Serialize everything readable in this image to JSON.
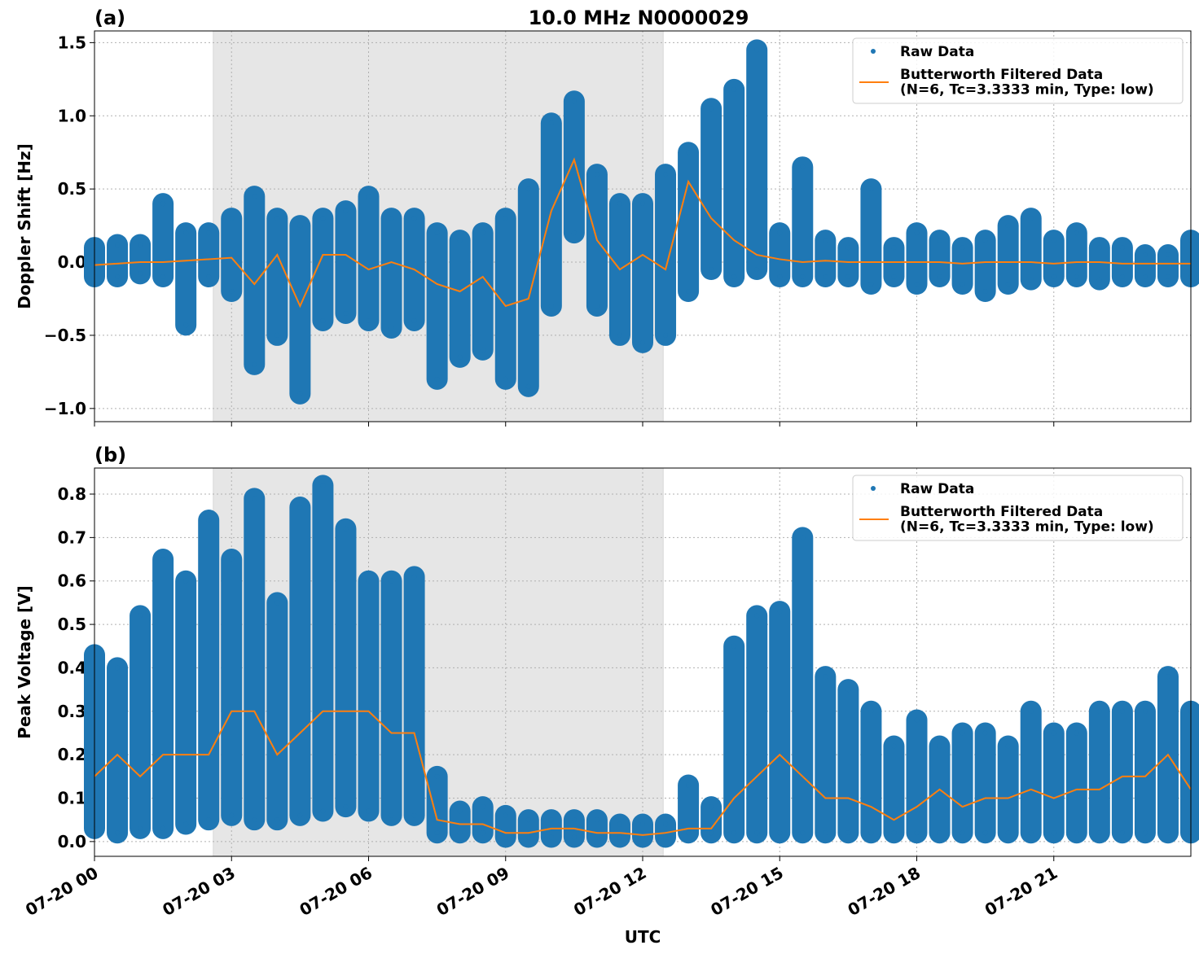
{
  "chart_data": [
    {
      "type": "scatter-line",
      "panel_label": "(a)",
      "title": "10.0 MHz N0000029",
      "ylabel": "Doppler Shift [Hz]",
      "xlim": [
        0,
        24
      ],
      "ylim": [
        -1.09,
        1.58
      ],
      "yticks": [
        {
          "value": -1,
          "label": "−1.0"
        },
        {
          "value": -0.5,
          "label": "−0.5"
        },
        {
          "value": 0,
          "label": "0.0"
        },
        {
          "value": 0.5,
          "label": "0.5"
        },
        {
          "value": 1,
          "label": "1.0"
        },
        {
          "value": 1.5,
          "label": "1.5"
        }
      ],
      "grid": true,
      "legend": "upper right",
      "shaded_span": [
        2.6,
        12.45
      ],
      "x": [
        0,
        0.5,
        1,
        1.5,
        2,
        2.5,
        3,
        3.5,
        4,
        4.5,
        5,
        5.5,
        6,
        6.5,
        7,
        7.5,
        8,
        8.5,
        9,
        9.5,
        10,
        10.5,
        11,
        11.5,
        12,
        12.5,
        13,
        13.5,
        14,
        14.5,
        15,
        15.5,
        16,
        16.5,
        17,
        17.5,
        18,
        18.5,
        19,
        19.5,
        20,
        20.5,
        21,
        21.5,
        22,
        22.5,
        23,
        23.5,
        24
      ],
      "series": [
        {
          "name": "Raw Data",
          "color": "#1f77b4",
          "upper": [
            0.1,
            0.12,
            0.12,
            0.4,
            0.2,
            0.2,
            0.3,
            0.45,
            0.3,
            0.25,
            0.3,
            0.35,
            0.45,
            0.3,
            0.3,
            0.2,
            0.15,
            0.2,
            0.3,
            0.5,
            0.95,
            1.1,
            0.6,
            0.4,
            0.4,
            0.6,
            0.75,
            1.05,
            1.18,
            1.45,
            0.2,
            0.65,
            0.15,
            0.1,
            0.5,
            0.1,
            0.2,
            0.15,
            0.1,
            0.15,
            0.25,
            0.3,
            0.15,
            0.2,
            0.1,
            0.1,
            0.05,
            0.05,
            0.15
          ],
          "lower": [
            -0.1,
            -0.1,
            -0.08,
            -0.1,
            -0.43,
            -0.1,
            -0.2,
            -0.7,
            -0.5,
            -0.9,
            -0.4,
            -0.35,
            -0.4,
            -0.45,
            -0.4,
            -0.8,
            -0.65,
            -0.6,
            -0.8,
            -0.85,
            -0.3,
            0.2,
            -0.3,
            -0.5,
            -0.55,
            -0.5,
            -0.2,
            -0.05,
            -0.1,
            -0.05,
            -0.1,
            -0.1,
            -0.1,
            -0.1,
            -0.15,
            -0.1,
            -0.15,
            -0.1,
            -0.15,
            -0.2,
            -0.15,
            -0.12,
            -0.1,
            -0.1,
            -0.12,
            -0.1,
            -0.1,
            -0.1,
            -0.1
          ]
        },
        {
          "name": "Butterworth Filtered Data\n(N=6, Tc=3.3333 min, Type: low)",
          "color": "#ff7f0e",
          "values": [
            -0.02,
            -0.01,
            0,
            0,
            0.01,
            0.02,
            0.03,
            -0.15,
            0.05,
            -0.3,
            0.05,
            0.05,
            -0.05,
            0,
            -0.05,
            -0.15,
            -0.2,
            -0.1,
            -0.3,
            -0.25,
            0.35,
            0.7,
            0.15,
            -0.05,
            0.05,
            -0.05,
            0.55,
            0.3,
            0.15,
            0.05,
            0.02,
            0,
            0.01,
            0,
            0,
            0,
            0,
            0,
            -0.01,
            0,
            0,
            0,
            -0.01,
            0,
            0,
            -0.01,
            -0.01,
            -0.01,
            -0.01
          ]
        }
      ]
    },
    {
      "type": "scatter-line",
      "panel_label": "(b)",
      "ylabel": "Peak Voltage [V]",
      "xlabel": "UTC",
      "xlim": [
        0,
        24
      ],
      "ylim": [
        -0.034,
        0.86
      ],
      "xticks": [
        {
          "value": 0,
          "label": "07-20 00"
        },
        {
          "value": 3,
          "label": "07-20 03"
        },
        {
          "value": 6,
          "label": "07-20 06"
        },
        {
          "value": 9,
          "label": "07-20 09"
        },
        {
          "value": 12,
          "label": "07-20 12"
        },
        {
          "value": 15,
          "label": "07-20 15"
        },
        {
          "value": 18,
          "label": "07-20 18"
        },
        {
          "value": 21,
          "label": "07-20 21"
        }
      ],
      "yticks": [
        {
          "value": 0,
          "label": "0.0"
        },
        {
          "value": 0.1,
          "label": "0.1"
        },
        {
          "value": 0.2,
          "label": "0.2"
        },
        {
          "value": 0.3,
          "label": "0.3"
        },
        {
          "value": 0.4,
          "label": "0.4"
        },
        {
          "value": 0.5,
          "label": "0.5"
        },
        {
          "value": 0.6,
          "label": "0.6"
        },
        {
          "value": 0.7,
          "label": "0.7"
        },
        {
          "value": 0.8,
          "label": "0.8"
        }
      ],
      "grid": true,
      "legend": "upper right",
      "shaded_span": [
        2.6,
        12.45
      ],
      "x": [
        0,
        0.5,
        1,
        1.5,
        2,
        2.5,
        3,
        3.5,
        4,
        4.5,
        5,
        5.5,
        6,
        6.5,
        7,
        7.5,
        8,
        8.5,
        9,
        9.5,
        10,
        10.5,
        11,
        11.5,
        12,
        12.5,
        13,
        13.5,
        14,
        14.5,
        15,
        15.5,
        16,
        16.5,
        17,
        17.5,
        18,
        18.5,
        19,
        19.5,
        20,
        20.5,
        21,
        21.5,
        22,
        22.5,
        23,
        23.5,
        24
      ],
      "series": [
        {
          "name": "Raw Data",
          "color": "#1f77b4",
          "upper": [
            0.43,
            0.4,
            0.52,
            0.65,
            0.6,
            0.74,
            0.65,
            0.79,
            0.55,
            0.77,
            0.82,
            0.72,
            0.6,
            0.6,
            0.61,
            0.15,
            0.07,
            0.08,
            0.06,
            0.05,
            0.05,
            0.05,
            0.05,
            0.04,
            0.04,
            0.04,
            0.13,
            0.08,
            0.45,
            0.52,
            0.53,
            0.7,
            0.38,
            0.35,
            0.3,
            0.22,
            0.28,
            0.22,
            0.25,
            0.25,
            0.22,
            0.3,
            0.25,
            0.25,
            0.3,
            0.3,
            0.3,
            0.38,
            0.3
          ],
          "lower": [
            0.03,
            0.02,
            0.03,
            0.03,
            0.04,
            0.05,
            0.06,
            0.05,
            0.05,
            0.06,
            0.07,
            0.08,
            0.07,
            0.06,
            0.06,
            0.02,
            0.02,
            0.02,
            0.01,
            0.01,
            0.01,
            0.01,
            0.01,
            0.01,
            0.01,
            0.01,
            0.02,
            0.02,
            0.02,
            0.02,
            0.02,
            0.02,
            0.02,
            0.02,
            0.02,
            0.02,
            0.02,
            0.02,
            0.02,
            0.02,
            0.02,
            0.02,
            0.02,
            0.02,
            0.02,
            0.02,
            0.02,
            0.02,
            0.02
          ]
        },
        {
          "name": "Butterworth Filtered Data\n(N=6, Tc=3.3333 min, Type: low)",
          "color": "#ff7f0e",
          "values": [
            0.15,
            0.2,
            0.15,
            0.2,
            0.2,
            0.2,
            0.3,
            0.3,
            0.2,
            0.25,
            0.3,
            0.3,
            0.3,
            0.25,
            0.25,
            0.05,
            0.04,
            0.04,
            0.02,
            0.02,
            0.03,
            0.03,
            0.02,
            0.02,
            0.015,
            0.02,
            0.03,
            0.03,
            0.1,
            0.15,
            0.2,
            0.15,
            0.1,
            0.1,
            0.08,
            0.05,
            0.08,
            0.12,
            0.08,
            0.1,
            0.1,
            0.12,
            0.1,
            0.12,
            0.12,
            0.15,
            0.15,
            0.2,
            0.12
          ]
        }
      ]
    }
  ]
}
